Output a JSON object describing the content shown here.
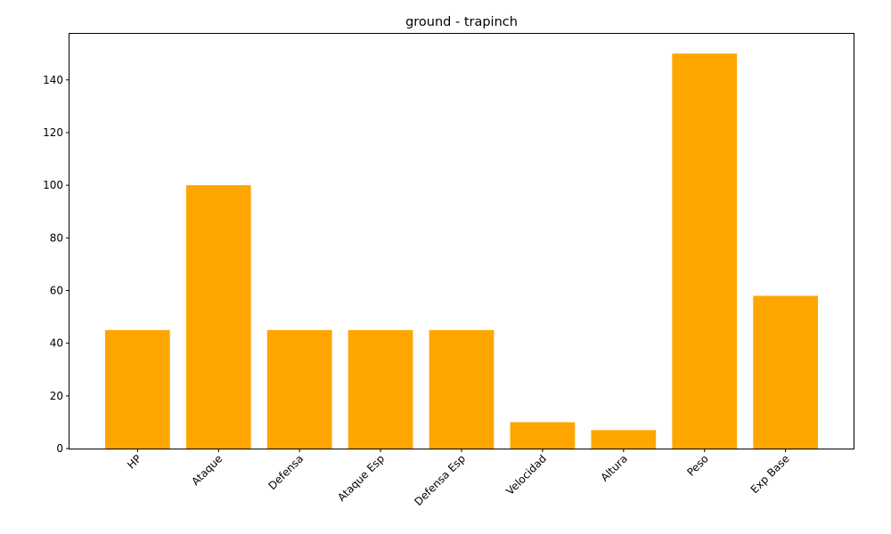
{
  "chart_data": {
    "type": "bar",
    "title": "ground - trapinch",
    "xlabel": "",
    "ylabel": "",
    "categories": [
      "HP",
      "Ataque",
      "Defensa",
      "Ataque Esp",
      "Defensa Esp",
      "Velocidad",
      "Altura",
      "Peso",
      "Exp Base"
    ],
    "values": [
      45,
      100,
      45,
      45,
      45,
      10,
      7,
      150,
      58
    ],
    "ylim": [
      0,
      157.5
    ],
    "yticks": [
      0,
      20,
      40,
      60,
      80,
      100,
      120,
      140
    ],
    "bar_color": "#FFA500",
    "grid": false,
    "legend": "none"
  }
}
